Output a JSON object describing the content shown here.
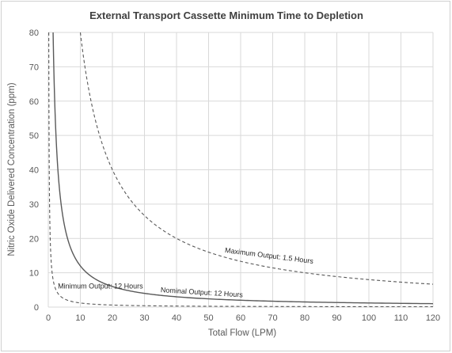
{
  "chart_data": {
    "type": "line",
    "title": "External Transport Cassette Minimum Time to Depletion",
    "xlabel": "Total Flow (LPM)",
    "ylabel": "Nitric Oxide Delivered Concentration (ppm)",
    "xlim": [
      0,
      120
    ],
    "ylim": [
      0,
      80
    ],
    "xticks": [
      0,
      10,
      20,
      30,
      40,
      50,
      60,
      70,
      80,
      90,
      100,
      110,
      120
    ],
    "yticks": [
      0,
      10,
      20,
      30,
      40,
      50,
      60,
      70,
      80
    ],
    "grid": true,
    "x": [
      0.5,
      1,
      2,
      3,
      5,
      7.5,
      10,
      15,
      20,
      30,
      40,
      50,
      60,
      70,
      80,
      90,
      100,
      110,
      120
    ],
    "series": [
      {
        "name": "Maximum Output: 1.5 Hours",
        "style": "dashed",
        "x": [
          10,
          12.5,
          15,
          17.5,
          20,
          25,
          30,
          35,
          40,
          50,
          60,
          70,
          80,
          90,
          100,
          110,
          120
        ],
        "values": [
          80,
          64,
          53.3,
          45.7,
          40,
          32,
          26.7,
          22.9,
          20,
          16,
          13.3,
          11.4,
          10,
          8.9,
          8,
          7.3,
          6.7
        ]
      },
      {
        "name": "Nominal Output: 12 Hours",
        "style": "solid",
        "x": [
          1.5,
          2,
          2.5,
          3,
          4,
          5,
          7.5,
          10,
          15,
          20,
          30,
          40,
          50,
          60,
          70,
          80,
          90,
          100,
          110,
          120
        ],
        "values": [
          80,
          60,
          48,
          40,
          30,
          24,
          16,
          12,
          8,
          6,
          4,
          3,
          2.4,
          2,
          1.7,
          1.5,
          1.3,
          1.2,
          1.1,
          1
        ]
      },
      {
        "name": "Minimum Output: 12 Hours",
        "style": "dashed",
        "x": [
          0.15,
          0.2,
          0.3,
          0.5,
          0.75,
          1,
          2,
          5,
          10,
          20,
          40,
          60,
          80,
          100,
          120
        ],
        "values": [
          80,
          60,
          40,
          24,
          16,
          12,
          6,
          2.4,
          1.2,
          0.6,
          0.3,
          0.2,
          0.15,
          0.12,
          0.1
        ]
      }
    ],
    "annotations": [
      {
        "text": "Maximum Output: 1.5 Hours",
        "series": 0
      },
      {
        "text": "Nominal Output: 12 Hours",
        "series": 1
      },
      {
        "text": "Minimum Output: 12 Hours",
        "series": 2
      }
    ],
    "colors": {
      "line": "#595959",
      "grid": "#d9d9d9",
      "text": "#595959"
    }
  }
}
